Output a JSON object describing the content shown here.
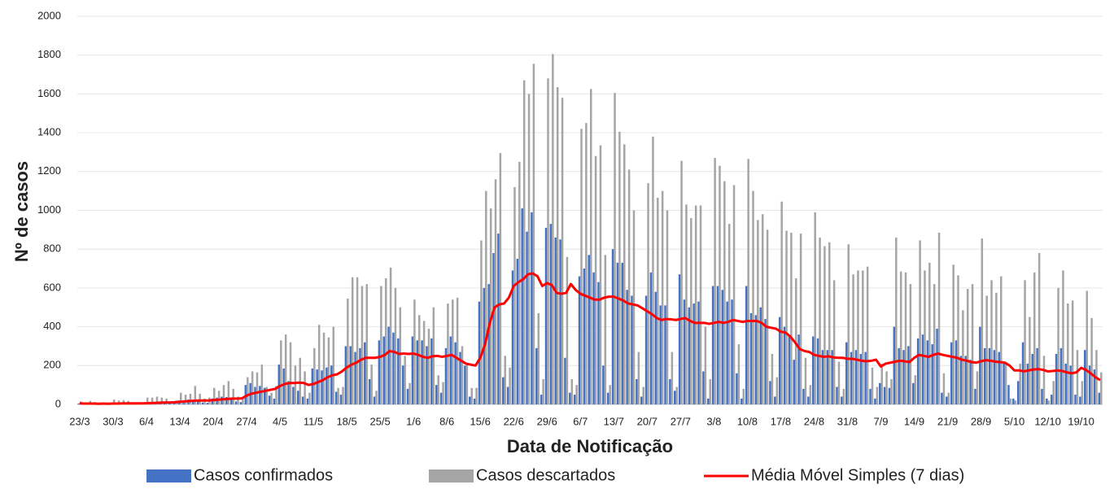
{
  "chart_data": {
    "type": "bar",
    "y_label": "Nº de casos",
    "x_label": "Data de Notificação",
    "ylim": [
      0,
      2000
    ],
    "yticks": [
      0,
      200,
      400,
      600,
      800,
      1000,
      1200,
      1400,
      1600,
      1800,
      2000
    ],
    "grid": true,
    "legend": "bottom",
    "categories": [
      "23/3",
      null,
      null,
      null,
      null,
      null,
      null,
      "30/3",
      null,
      null,
      null,
      null,
      null,
      null,
      "6/4",
      null,
      null,
      null,
      null,
      null,
      null,
      "13/4",
      null,
      null,
      null,
      null,
      null,
      null,
      "20/4",
      null,
      null,
      null,
      null,
      null,
      null,
      "27/4",
      null,
      null,
      null,
      null,
      null,
      null,
      "4/5",
      null,
      null,
      null,
      null,
      null,
      null,
      "11/5",
      null,
      null,
      null,
      null,
      null,
      null,
      "18/5",
      null,
      null,
      null,
      null,
      null,
      null,
      "25/5",
      null,
      null,
      null,
      null,
      null,
      null,
      "1/6",
      null,
      null,
      null,
      null,
      null,
      null,
      "8/6",
      null,
      null,
      null,
      null,
      null,
      null,
      "15/6",
      null,
      null,
      null,
      null,
      null,
      null,
      "22/6",
      null,
      null,
      null,
      null,
      null,
      null,
      "29/6",
      null,
      null,
      null,
      null,
      null,
      null,
      "6/7",
      null,
      null,
      null,
      null,
      null,
      null,
      "13/7",
      null,
      null,
      null,
      null,
      null,
      null,
      "20/7",
      null,
      null,
      null,
      null,
      null,
      null,
      "27/7",
      null,
      null,
      null,
      null,
      null,
      null,
      "3/8",
      null,
      null,
      null,
      null,
      null,
      null,
      "10/8",
      null,
      null,
      null,
      null,
      null,
      null,
      "17/8",
      null,
      null,
      null,
      null,
      null,
      null,
      "24/8",
      null,
      null,
      null,
      null,
      null,
      null,
      "31/8",
      null,
      null,
      null,
      null,
      null,
      null,
      "7/9",
      null,
      null,
      null,
      null,
      null,
      null,
      "14/9",
      null,
      null,
      null,
      null,
      null,
      null,
      "21/9",
      null,
      null,
      null,
      null,
      null,
      null,
      "28/9",
      null,
      null,
      null,
      null,
      null,
      null,
      "5/10",
      null,
      null,
      null,
      null,
      null,
      null,
      "12/10",
      null,
      null,
      null,
      null,
      null,
      null,
      "19/10",
      null,
      null,
      null,
      null
    ],
    "series": [
      {
        "name": "Casos confirmados",
        "color": "#4472c4",
        "kind": "bar",
        "values": [
          5,
          3,
          4,
          2,
          3,
          1,
          1,
          5,
          4,
          6,
          5,
          3,
          2,
          3,
          8,
          10,
          12,
          15,
          10,
          5,
          6,
          20,
          18,
          25,
          22,
          18,
          10,
          8,
          30,
          35,
          40,
          38,
          30,
          15,
          12,
          100,
          110,
          90,
          95,
          85,
          45,
          30,
          205,
          185,
          120,
          90,
          70,
          40,
          30,
          185,
          180,
          175,
          190,
          200,
          65,
          50,
          300,
          300,
          270,
          290,
          320,
          130,
          40,
          330,
          350,
          400,
          370,
          340,
          200,
          80,
          350,
          330,
          330,
          300,
          340,
          100,
          60,
          290,
          350,
          320,
          270,
          200,
          40,
          30,
          530,
          600,
          620,
          780,
          880,
          140,
          90,
          690,
          750,
          1010,
          890,
          990,
          290,
          50,
          910,
          930,
          860,
          850,
          240,
          60,
          50,
          660,
          700,
          770,
          680,
          630,
          200,
          60,
          800,
          730,
          730,
          590,
          560,
          130,
          40,
          560,
          680,
          580,
          510,
          510,
          130,
          70,
          670,
          540,
          500,
          520,
          530,
          170,
          30,
          610,
          610,
          590,
          530,
          540,
          160,
          30,
          610,
          470,
          460,
          500,
          440,
          120,
          40,
          450,
          400,
          350,
          230,
          360,
          80,
          40,
          350,
          340,
          280,
          280,
          280,
          90,
          40,
          320,
          270,
          280,
          260,
          270,
          80,
          30,
          110,
          90,
          85,
          400,
          290,
          280,
          300,
          110,
          340,
          360,
          330,
          310,
          390,
          60,
          40,
          320,
          330,
          250,
          250,
          230,
          80,
          400,
          290,
          290,
          280,
          270,
          220,
          100,
          30,
          120,
          320,
          210,
          260,
          290,
          80,
          30,
          50,
          260,
          290,
          210,
          200,
          50,
          40,
          280,
          200,
          180,
          60
        ]
      },
      {
        "name": "Casos descartados",
        "color": "#a5a5a5",
        "kind": "bar",
        "values": [
          15,
          10,
          18,
          12,
          8,
          5,
          5,
          25,
          20,
          22,
          18,
          10,
          8,
          8,
          35,
          35,
          40,
          35,
          30,
          15,
          20,
          60,
          50,
          55,
          95,
          55,
          30,
          35,
          85,
          70,
          100,
          120,
          80,
          40,
          30,
          140,
          170,
          165,
          205,
          90,
          60,
          95,
          330,
          360,
          320,
          200,
          240,
          170,
          60,
          290,
          410,
          370,
          345,
          400,
          85,
          90,
          545,
          655,
          655,
          610,
          620,
          205,
          70,
          610,
          650,
          705,
          600,
          500,
          250,
          110,
          540,
          460,
          430,
          390,
          500,
          150,
          115,
          520,
          540,
          550,
          300,
          210,
          85,
          85,
          845,
          1100,
          1010,
          1160,
          1295,
          250,
          190,
          1120,
          1250,
          1670,
          1600,
          1755,
          470,
          130,
          1680,
          1805,
          1635,
          1580,
          760,
          130,
          100,
          1420,
          1450,
          1625,
          1280,
          1335,
          770,
          100,
          1605,
          1405,
          1340,
          1210,
          1000,
          270,
          90,
          1140,
          1380,
          1065,
          1100,
          1000,
          270,
          90,
          1255,
          1030,
          960,
          1025,
          1025,
          400,
          130,
          1270,
          1230,
          1150,
          930,
          1130,
          310,
          80,
          1265,
          1100,
          950,
          980,
          900,
          260,
          140,
          1045,
          895,
          885,
          650,
          880,
          240,
          100,
          990,
          860,
          815,
          835,
          640,
          220,
          80,
          825,
          670,
          690,
          690,
          710,
          190,
          90,
          210,
          170,
          130,
          860,
          685,
          680,
          620,
          150,
          845,
          690,
          730,
          620,
          885,
          160,
          60,
          720,
          665,
          485,
          595,
          620,
          170,
          855,
          560,
          640,
          575,
          660,
          220,
          30,
          20,
          210,
          640,
          450,
          680,
          780,
          250,
          20,
          120,
          600,
          690,
          520,
          535,
          280,
          120,
          585,
          445,
          280,
          165
        ]
      },
      {
        "name": "Média Móvel Simples (7 dias)",
        "color": "#ff0000",
        "kind": "line",
        "values": [
          5,
          4,
          4,
          4,
          3,
          4,
          3,
          4,
          4,
          5,
          5,
          5,
          5,
          5,
          6,
          7,
          8,
          9,
          10,
          10,
          11,
          13,
          15,
          17,
          19,
          20,
          20,
          20,
          22,
          24,
          26,
          28,
          30,
          30,
          31,
          45,
          55,
          60,
          65,
          70,
          75,
          80,
          95,
          105,
          110,
          110,
          112,
          110,
          100,
          105,
          115,
          125,
          140,
          150,
          155,
          170,
          190,
          205,
          215,
          230,
          240,
          240,
          240,
          245,
          255,
          275,
          270,
          260,
          262,
          260,
          262,
          255,
          245,
          240,
          248,
          250,
          245,
          250,
          255,
          240,
          225,
          210,
          205,
          200,
          240,
          310,
          420,
          500,
          515,
          520,
          550,
          610,
          630,
          645,
          670,
          675,
          660,
          610,
          625,
          615,
          575,
          570,
          575,
          620,
          590,
          570,
          560,
          550,
          540,
          540,
          550,
          555,
          555,
          545,
          535,
          520,
          515,
          510,
          495,
          480,
          465,
          445,
          435,
          440,
          438,
          435,
          440,
          445,
          430,
          420,
          420,
          420,
          415,
          420,
          425,
          420,
          425,
          435,
          430,
          425,
          430,
          430,
          430,
          420,
          400,
          395,
          390,
          375,
          370,
          350,
          320,
          285,
          275,
          270,
          255,
          250,
          245,
          248,
          242,
          240,
          240,
          235,
          235,
          230,
          225,
          222,
          225,
          230,
          195,
          210,
          215,
          220,
          225,
          222,
          218,
          240,
          255,
          250,
          245,
          255,
          262,
          255,
          250,
          245,
          240,
          230,
          225,
          218,
          215,
          222,
          228,
          225,
          220,
          218,
          215,
          200,
          175,
          175,
          170,
          175,
          180,
          182,
          178,
          170,
          172,
          175,
          172,
          165,
          160,
          165,
          188,
          178,
          160,
          140,
          125
        ]
      }
    ]
  }
}
